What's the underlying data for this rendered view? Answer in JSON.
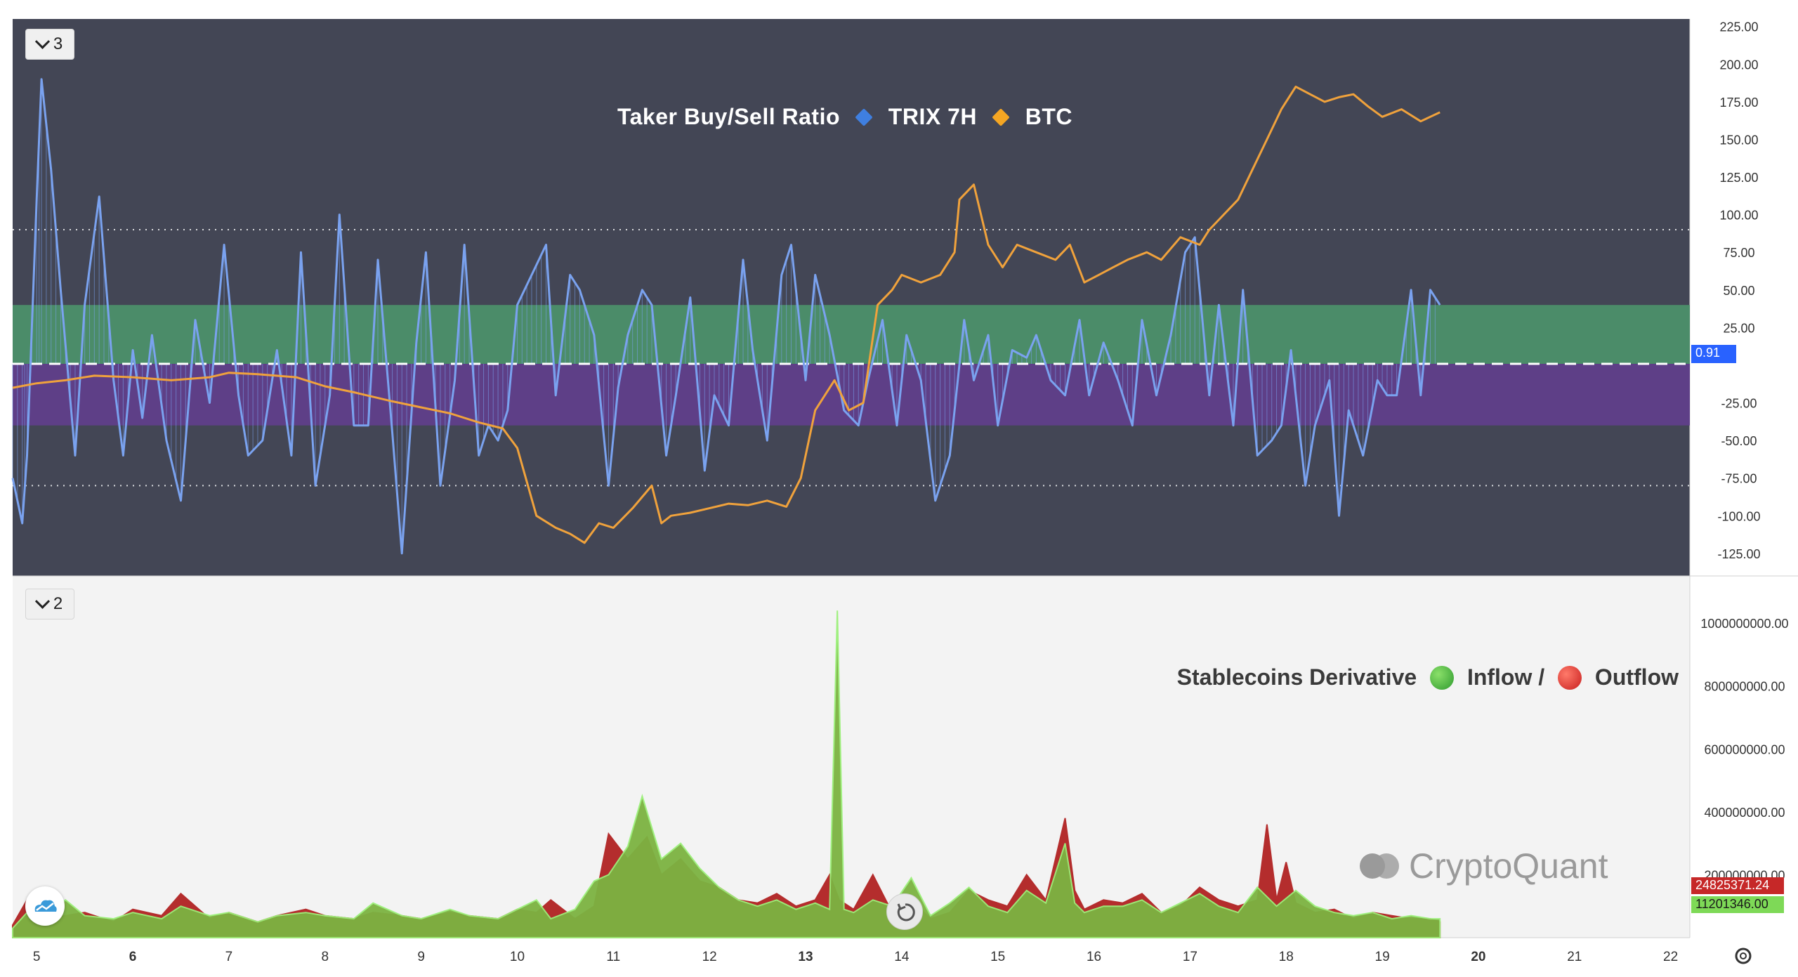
{
  "panes": {
    "top": {
      "button_label": "3",
      "legend": {
        "item1": "Taker Buy/Sell Ratio",
        "item2": "TRIX 7H",
        "item3": "BTC"
      },
      "current_value_label": "0.91",
      "axis_ticks": [
        "225.00",
        "200.00",
        "175.00",
        "150.00",
        "125.00",
        "100.00",
        "75.00",
        "50.00",
        "25.00",
        "-25.00",
        "-50.00",
        "-75.00",
        "-100.00",
        "-125.00"
      ]
    },
    "bottom": {
      "button_label": "2",
      "legend": {
        "item1": "Stablecoins Derivative",
        "item2": "Inflow /",
        "item3": "Outflow"
      },
      "axis_ticks": [
        "1000000000.00",
        "800000000.00",
        "600000000.00",
        "400000000.00",
        "200000000.00"
      ],
      "outflow_label": "24825371.24",
      "inflow_label": "11201346.00"
    }
  },
  "watermark": "CryptoQuant",
  "x_axis_ticks": [
    "5",
    "6",
    "7",
    "8",
    "9",
    "10",
    "11",
    "12",
    "13",
    "14",
    "15",
    "16",
    "17",
    "18",
    "19",
    "20",
    "21",
    "22"
  ],
  "colors": {
    "trix": "#7aa2ef",
    "btc": "#f0a23c",
    "inflow": "#7cb342",
    "inflow_light": "#9cf07a",
    "outflow": "#b42d2d",
    "pane_bg": "#434655",
    "green_band": "#4b8c69",
    "purple_band": "#5e3f87"
  },
  "chart_data": [
    {
      "type": "line",
      "title": "Taker Buy/Sell Ratio ◆ TRIX 7H ◆ BTC",
      "x_range": [
        4.75,
        22.2
      ],
      "ylim": [
        -140,
        230
      ],
      "ticks": [
        225,
        200,
        175,
        150,
        125,
        100,
        75,
        50,
        25,
        -25,
        -50,
        -75,
        -100,
        -125
      ],
      "bands": [
        {
          "from": 0.91,
          "to": 40,
          "name": "upper"
        },
        {
          "from": -40,
          "to": 0.91,
          "name": "lower"
        }
      ],
      "ref_lines": [
        {
          "y": 90,
          "style": "dotted"
        },
        {
          "y": -80,
          "style": "dotted"
        },
        {
          "y": 0.91,
          "style": "dashed"
        }
      ],
      "series": [
        {
          "name": "TRIX 7H",
          "x": [
            4.75,
            4.85,
            4.9,
            5.0,
            5.05,
            5.15,
            5.25,
            5.4,
            5.5,
            5.65,
            5.8,
            5.9,
            6.0,
            6.1,
            6.2,
            6.35,
            6.5,
            6.65,
            6.8,
            6.95,
            7.1,
            7.2,
            7.35,
            7.5,
            7.65,
            7.75,
            7.9,
            8.05,
            8.15,
            8.3,
            8.45,
            8.55,
            8.7,
            8.8,
            8.95,
            9.05,
            9.2,
            9.35,
            9.45,
            9.6,
            9.7,
            9.8,
            9.9,
            10.0,
            10.15,
            10.3,
            10.4,
            10.55,
            10.65,
            10.8,
            10.95,
            11.05,
            11.15,
            11.3,
            11.4,
            11.55,
            11.65,
            11.8,
            11.95,
            12.05,
            12.2,
            12.35,
            12.45,
            12.6,
            12.75,
            12.85,
            13.0,
            13.1,
            13.25,
            13.4,
            13.55,
            13.65,
            13.8,
            13.95,
            14.05,
            14.2,
            14.35,
            14.5,
            14.65,
            14.75,
            14.9,
            15.0,
            15.15,
            15.3,
            15.4,
            15.55,
            15.7,
            15.85,
            15.95,
            16.1,
            16.25,
            16.4,
            16.5,
            16.65,
            16.8,
            16.95,
            17.05,
            17.2,
            17.3,
            17.45,
            17.55,
            17.7,
            17.85,
            17.95,
            18.05,
            18.2,
            18.3,
            18.45,
            18.55,
            18.65,
            18.8,
            18.95,
            19.05,
            19.15,
            19.3,
            19.4,
            19.5,
            19.6
          ],
          "values": [
            -75,
            -105,
            -60,
            110,
            190,
            130,
            50,
            -60,
            40,
            112,
            -10,
            -60,
            10,
            -35,
            20,
            -50,
            -90,
            30,
            -25,
            80,
            -20,
            -60,
            -50,
            10,
            -60,
            75,
            -80,
            -20,
            100,
            -40,
            -40,
            70,
            -45,
            -125,
            15,
            75,
            -80,
            -10,
            80,
            -60,
            -40,
            -50,
            -30,
            40,
            60,
            80,
            -20,
            60,
            50,
            20,
            -80,
            -15,
            20,
            50,
            40,
            -60,
            -20,
            45,
            -70,
            -20,
            -40,
            70,
            10,
            -50,
            60,
            80,
            -10,
            60,
            20,
            -30,
            -40,
            -10,
            30,
            -40,
            20,
            -10,
            -90,
            -60,
            30,
            -10,
            20,
            -40,
            10,
            5,
            20,
            -10,
            -20,
            30,
            -20,
            15,
            -10,
            -40,
            30,
            -20,
            20,
            75,
            85,
            -20,
            40,
            -40,
            50,
            -60,
            -50,
            -40,
            10,
            -80,
            -40,
            -10,
            -100,
            -30,
            -60,
            -10,
            -20,
            -20,
            50,
            -20,
            50,
            40
          ]
        },
        {
          "name": "BTC",
          "x": [
            4.75,
            5.0,
            5.3,
            5.6,
            6.0,
            6.4,
            6.8,
            7.0,
            7.3,
            7.7,
            8.0,
            8.3,
            8.7,
            9.0,
            9.3,
            9.6,
            9.85,
            10.0,
            10.2,
            10.4,
            10.55,
            10.7,
            10.85,
            11.0,
            11.2,
            11.4,
            11.5,
            11.6,
            11.8,
            12.0,
            12.2,
            12.4,
            12.6,
            12.8,
            12.95,
            13.1,
            13.2,
            13.3,
            13.45,
            13.6,
            13.75,
            13.9,
            14.0,
            14.2,
            14.4,
            14.55,
            14.6,
            14.75,
            14.9,
            15.05,
            15.2,
            15.4,
            15.6,
            15.75,
            15.9,
            16.05,
            16.2,
            16.35,
            16.55,
            16.7,
            16.9,
            17.1,
            17.2,
            17.35,
            17.5,
            17.65,
            17.8,
            17.95,
            18.1,
            18.25,
            18.4,
            18.55,
            18.7,
            18.85,
            19.0,
            19.2,
            19.4,
            19.6
          ],
          "values": [
            -15,
            -12,
            -10,
            -7,
            -8,
            -10,
            -8,
            -5,
            -6,
            -8,
            -14,
            -18,
            -24,
            -28,
            -32,
            -38,
            -42,
            -55,
            -100,
            -108,
            -112,
            -118,
            -105,
            -108,
            -95,
            -80,
            -105,
            -100,
            -98,
            -95,
            -92,
            -93,
            -90,
            -94,
            -75,
            -30,
            -20,
            -10,
            -30,
            -25,
            40,
            50,
            60,
            55,
            60,
            75,
            110,
            120,
            80,
            65,
            80,
            75,
            70,
            80,
            55,
            60,
            65,
            70,
            75,
            70,
            85,
            80,
            90,
            100,
            110,
            130,
            150,
            170,
            185,
            180,
            175,
            178,
            180,
            172,
            165,
            170,
            162,
            168
          ]
        }
      ]
    },
    {
      "type": "area",
      "title": "Stablecoins Derivative Inflow / Outflow",
      "x_range": [
        4.75,
        22.2
      ],
      "ylim": [
        0,
        1150000000
      ],
      "ticks": [
        1000000000,
        800000000,
        600000000,
        400000000,
        200000000
      ],
      "series": [
        {
          "name": "Outflow",
          "x": [
            4.75,
            4.9,
            5.0,
            5.3,
            5.5,
            5.8,
            6.0,
            6.3,
            6.5,
            6.8,
            7.0,
            7.3,
            7.5,
            7.8,
            8.0,
            8.3,
            8.5,
            8.8,
            9.0,
            9.3,
            9.5,
            9.8,
            10.0,
            10.2,
            10.35,
            10.6,
            10.8,
            10.95,
            11.15,
            11.35,
            11.5,
            11.7,
            11.9,
            12.1,
            12.3,
            12.5,
            12.7,
            12.9,
            13.1,
            13.25,
            13.35,
            13.5,
            13.7,
            13.9,
            14.1,
            14.3,
            14.5,
            14.7,
            14.9,
            15.1,
            15.3,
            15.5,
            15.7,
            15.8,
            15.9,
            16.1,
            16.3,
            16.5,
            16.7,
            16.9,
            17.1,
            17.3,
            17.5,
            17.7,
            17.8,
            17.9,
            18.0,
            18.1,
            18.3,
            18.5,
            18.7,
            18.9,
            19.1,
            19.3,
            19.5,
            19.6
          ],
          "values": [
            40000000,
            120000000,
            60000000,
            70000000,
            80000000,
            50000000,
            90000000,
            70000000,
            140000000,
            60000000,
            80000000,
            50000000,
            70000000,
            90000000,
            70000000,
            60000000,
            80000000,
            70000000,
            60000000,
            80000000,
            70000000,
            60000000,
            90000000,
            80000000,
            120000000,
            60000000,
            100000000,
            330000000,
            250000000,
            320000000,
            200000000,
            250000000,
            180000000,
            160000000,
            120000000,
            110000000,
            140000000,
            100000000,
            120000000,
            200000000,
            120000000,
            90000000,
            200000000,
            80000000,
            120000000,
            60000000,
            80000000,
            150000000,
            120000000,
            100000000,
            200000000,
            120000000,
            380000000,
            150000000,
            90000000,
            120000000,
            110000000,
            140000000,
            80000000,
            100000000,
            160000000,
            120000000,
            100000000,
            120000000,
            360000000,
            120000000,
            240000000,
            110000000,
            80000000,
            90000000,
            60000000,
            80000000,
            70000000,
            60000000,
            60000000,
            50000000
          ]
        },
        {
          "name": "Inflow",
          "x": [
            4.75,
            4.9,
            5.0,
            5.3,
            5.5,
            5.8,
            6.0,
            6.3,
            6.5,
            6.8,
            7.0,
            7.3,
            7.5,
            7.8,
            8.0,
            8.3,
            8.5,
            8.8,
            9.0,
            9.3,
            9.5,
            9.8,
            10.0,
            10.2,
            10.35,
            10.6,
            10.8,
            10.95,
            11.15,
            11.3,
            11.5,
            11.7,
            11.9,
            12.1,
            12.3,
            12.5,
            12.7,
            12.9,
            13.1,
            13.25,
            13.33,
            13.4,
            13.5,
            13.7,
            13.9,
            14.1,
            14.3,
            14.5,
            14.7,
            14.9,
            15.1,
            15.3,
            15.5,
            15.7,
            15.8,
            15.9,
            16.1,
            16.3,
            16.5,
            16.7,
            16.9,
            17.1,
            17.3,
            17.5,
            17.7,
            17.9,
            18.1,
            18.3,
            18.5,
            18.7,
            18.9,
            19.1,
            19.3,
            19.5,
            19.6
          ],
          "values": [
            30000000,
            80000000,
            50000000,
            120000000,
            70000000,
            60000000,
            80000000,
            60000000,
            100000000,
            70000000,
            80000000,
            50000000,
            70000000,
            80000000,
            70000000,
            60000000,
            110000000,
            70000000,
            60000000,
            90000000,
            70000000,
            60000000,
            90000000,
            120000000,
            60000000,
            90000000,
            180000000,
            200000000,
            290000000,
            450000000,
            250000000,
            300000000,
            220000000,
            160000000,
            120000000,
            100000000,
            120000000,
            90000000,
            110000000,
            90000000,
            1040000000,
            90000000,
            80000000,
            120000000,
            100000000,
            190000000,
            70000000,
            110000000,
            160000000,
            100000000,
            80000000,
            150000000,
            110000000,
            300000000,
            110000000,
            80000000,
            100000000,
            100000000,
            120000000,
            80000000,
            110000000,
            140000000,
            100000000,
            80000000,
            160000000,
            100000000,
            150000000,
            100000000,
            80000000,
            70000000,
            80000000,
            60000000,
            70000000,
            60000000,
            60000000
          ]
        }
      ]
    }
  ]
}
